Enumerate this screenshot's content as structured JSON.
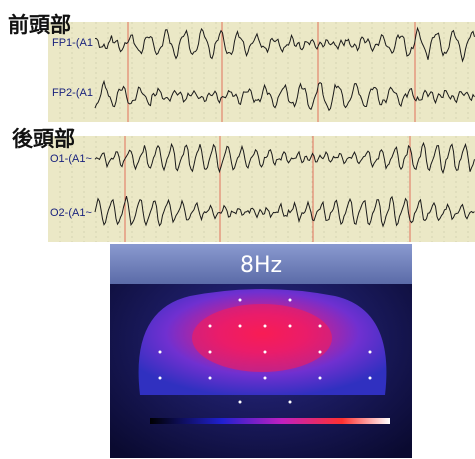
{
  "frontal": {
    "title": "前頭部",
    "channels": [
      "FP1-(A1",
      "FP2-(A1"
    ]
  },
  "occipital": {
    "title": "後頭部",
    "channels": [
      "O1-(A1~",
      "O2-(A1~"
    ]
  },
  "topography": {
    "title": "8Hz"
  }
}
